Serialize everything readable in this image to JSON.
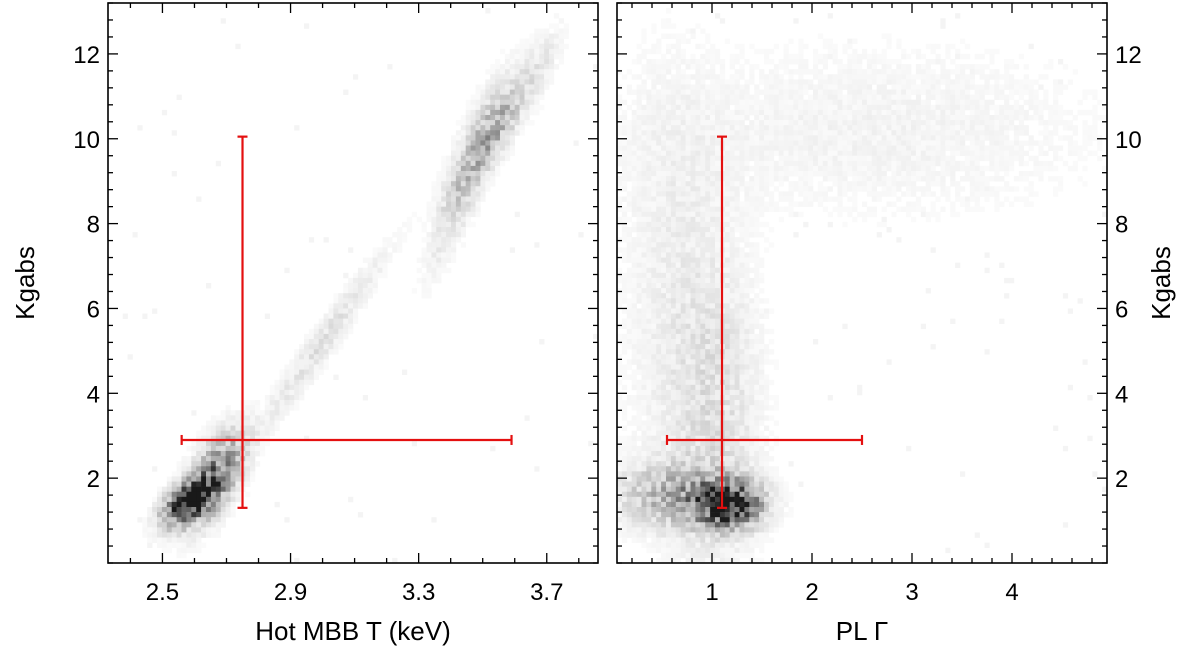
{
  "chart_data": [
    {
      "type": "heatmap",
      "xlabel": "Hot MBB T (keV)",
      "ylabel": "Kgabs",
      "xlim": [
        2.33,
        3.86
      ],
      "ylim": [
        0.0,
        13.2
      ],
      "x_ticks": [
        2.5,
        2.9,
        3.3,
        3.7
      ],
      "x_tick_labels": [
        "2.5",
        "2.9",
        "3.3",
        "3.7"
      ],
      "y_ticks": [
        2,
        4,
        6,
        8,
        10,
        12
      ],
      "y_tick_labels": [
        "2",
        "4",
        "6",
        "8",
        "10",
        "12"
      ],
      "ylabel_side": "left",
      "density_blobs": [
        {
          "x": 2.58,
          "y": 1.45,
          "sx": 0.05,
          "sy": 0.35,
          "rho": 0.55,
          "weight": 1.0
        },
        {
          "x": 2.66,
          "y": 2.0,
          "sx": 0.06,
          "sy": 0.7,
          "rho": 0.6,
          "weight": 0.55
        },
        {
          "x": 3.0,
          "y": 5.2,
          "sx": 0.14,
          "sy": 1.5,
          "rho": 0.97,
          "weight": 0.12
        },
        {
          "x": 3.45,
          "y": 9.2,
          "sx": 0.07,
          "sy": 1.3,
          "rho": 0.85,
          "weight": 0.22
        },
        {
          "x": 3.55,
          "y": 10.3,
          "sx": 0.06,
          "sy": 0.8,
          "rho": 0.8,
          "weight": 0.28
        },
        {
          "x": 3.68,
          "y": 11.7,
          "sx": 0.05,
          "sy": 0.7,
          "rho": 0.7,
          "weight": 0.08
        }
      ],
      "error_bar": {
        "x": 2.75,
        "y": 2.9,
        "x_low": 2.56,
        "x_high": 3.59,
        "y_low": 1.3,
        "y_high": 10.05
      },
      "error_bar_color": "#e41010"
    },
    {
      "type": "heatmap",
      "xlabel": "PL  Γ",
      "ylabel": "Kgabs",
      "xlim": [
        0.05,
        4.95
      ],
      "ylim": [
        0.0,
        13.2
      ],
      "x_ticks": [
        1,
        2,
        3,
        4
      ],
      "x_tick_labels": [
        "1",
        "2",
        "3",
        "4"
      ],
      "y_ticks": [
        2,
        4,
        6,
        8,
        10,
        12
      ],
      "y_tick_labels": [
        "2",
        "4",
        "6",
        "8",
        "10",
        "12"
      ],
      "ylabel_side": "right",
      "density_blobs": [
        {
          "x": 1.15,
          "y": 1.4,
          "sx": 0.22,
          "sy": 0.35,
          "rho": 0.0,
          "weight": 1.0
        },
        {
          "x": 0.6,
          "y": 1.6,
          "sx": 0.35,
          "sy": 0.5,
          "rho": 0.0,
          "weight": 0.3
        },
        {
          "x": 1.05,
          "y": 3.5,
          "sx": 0.3,
          "sy": 2.5,
          "rho": 0.0,
          "weight": 0.12
        },
        {
          "x": 0.6,
          "y": 6.5,
          "sx": 0.35,
          "sy": 3.5,
          "rho": 0.0,
          "weight": 0.06
        },
        {
          "x": 2.6,
          "y": 10.2,
          "sx": 1.6,
          "sy": 1.4,
          "rho": 0.0,
          "weight": 0.05
        }
      ],
      "error_bar": {
        "x": 1.1,
        "y": 2.9,
        "x_low": 0.55,
        "x_high": 2.5,
        "y_low": 1.3,
        "y_high": 10.05
      },
      "error_bar_color": "#e41010"
    }
  ]
}
